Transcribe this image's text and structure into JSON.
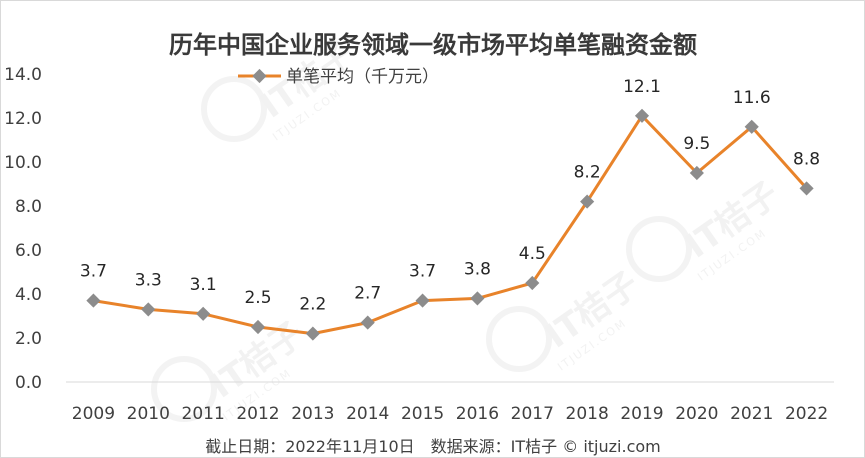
{
  "chart_data": {
    "type": "line",
    "title": "历年中国企业服务领域一级市场平均单笔融资金额",
    "categories": [
      "2009",
      "2010",
      "2011",
      "2012",
      "2013",
      "2014",
      "2015",
      "2016",
      "2017",
      "2018",
      "2019",
      "2020",
      "2021",
      "2022"
    ],
    "series": [
      {
        "name": "单笔平均（千万元）",
        "values": [
          3.7,
          3.3,
          3.1,
          2.5,
          2.2,
          2.7,
          3.7,
          3.8,
          4.5,
          8.2,
          12.1,
          9.5,
          11.6,
          8.8
        ],
        "data_labels": [
          "3.7",
          "3.3",
          "3.1",
          "2.5",
          "2.2",
          "2.7",
          "3.7",
          "3.8",
          "4.5",
          "8.2",
          "12.1",
          "9.5",
          "11.6",
          "8.8"
        ]
      }
    ],
    "ylim": [
      0,
      14
    ],
    "yticks": [
      "0.0",
      "2.0",
      "4.0",
      "6.0",
      "8.0",
      "10.0",
      "12.0",
      "14.0"
    ],
    "grid": false,
    "legend": "top",
    "line_color": "#E8832A",
    "marker_color": "#8C8C8C",
    "footer": "截止日期：2022年11月10日　数据来源：IT桔子 © itjuzi.com",
    "watermark": {
      "text": "IT桔子",
      "sub": "ITJUZI.COM"
    }
  }
}
